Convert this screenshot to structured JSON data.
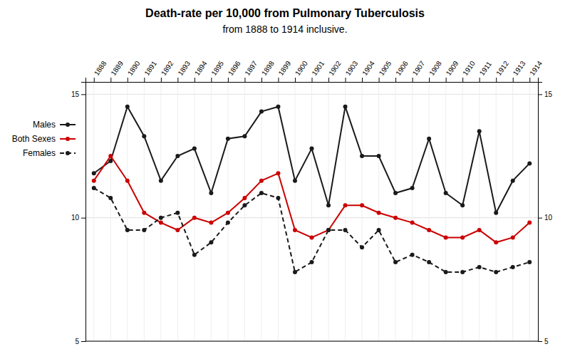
{
  "chart_data": {
    "type": "line",
    "title": "Death-rate per 10,000 from Pulmonary Tuberculosis",
    "subtitle": "from 1888 to 1914 inclusive.",
    "x": [
      1888,
      1889,
      1890,
      1891,
      1892,
      1893,
      1894,
      1895,
      1896,
      1897,
      1898,
      1899,
      1900,
      1901,
      1902,
      1903,
      1904,
      1905,
      1906,
      1907,
      1908,
      1909,
      1910,
      1911,
      1912,
      1913,
      1914
    ],
    "series": [
      {
        "name": "Males",
        "color": "#1a1a1a",
        "line_style": "solid",
        "marker": "circle",
        "values": [
          11.8,
          12.3,
          14.5,
          13.3,
          11.5,
          12.5,
          12.8,
          11.0,
          13.2,
          13.3,
          14.3,
          14.5,
          11.5,
          12.8,
          10.5,
          14.5,
          12.5,
          12.5,
          11.0,
          11.2,
          13.2,
          11.0,
          10.5,
          13.5,
          10.2,
          11.5,
          12.2
        ]
      },
      {
        "name": "Both Sexes",
        "color": "#cc0000",
        "line_style": "solid",
        "marker": "circle",
        "values": [
          11.5,
          12.5,
          11.5,
          10.2,
          9.8,
          9.5,
          10.0,
          9.8,
          10.2,
          10.8,
          11.5,
          11.8,
          9.5,
          9.2,
          9.5,
          10.5,
          10.5,
          10.2,
          10.0,
          9.8,
          9.5,
          9.2,
          9.2,
          9.5,
          9.0,
          9.2,
          9.8
        ]
      },
      {
        "name": "Females",
        "color": "#1a1a1a",
        "line_style": "dashed",
        "marker": "circle",
        "values": [
          11.2,
          10.8,
          9.5,
          9.5,
          10.0,
          10.2,
          8.5,
          9.0,
          9.8,
          10.5,
          11.0,
          10.8,
          7.8,
          8.2,
          9.5,
          9.5,
          8.8,
          9.5,
          8.2,
          8.5,
          8.2,
          7.8,
          7.8,
          8.0,
          7.8,
          8.0,
          8.2
        ]
      }
    ],
    "xlim": [
      1887.5,
      1914.5
    ],
    "xticks": [
      1888,
      1889,
      1890,
      1891,
      1892,
      1893,
      1894,
      1895,
      1896,
      1897,
      1898,
      1899,
      1900,
      1901,
      1902,
      1903,
      1904,
      1905,
      1906,
      1907,
      1908,
      1909,
      1910,
      1911,
      1912,
      1913,
      1914
    ],
    "ylim": [
      5,
      15.5
    ],
    "yticks": [
      5,
      10,
      15
    ],
    "y2lim": [
      5,
      15.5
    ],
    "y2ticks": [
      5,
      10,
      15
    ],
    "grid": true,
    "legend": "left"
  }
}
